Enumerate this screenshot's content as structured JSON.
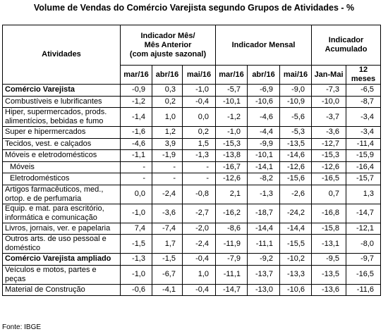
{
  "title": "Volume de Vendas do Comércio Varejista segundo Grupos de Atividades - %",
  "table": {
    "activity_header": "Atividades",
    "groups": [
      {
        "label": "Indicador Mês/\nMês Anterior\n(com ajuste sazonal)",
        "periods": [
          "mar/16",
          "abr/16",
          "mai/16"
        ]
      },
      {
        "label": "Indicador Mensal",
        "periods": [
          "mar/16",
          "abr/16",
          "mai/16"
        ]
      },
      {
        "label": "Indicador\nAcumulado",
        "periods": [
          "Jan-Mai",
          "12 meses"
        ]
      }
    ],
    "rows": [
      {
        "label": "Comércio Varejista",
        "values": [
          "-0,9",
          "0,3",
          "-1,0",
          "-5,7",
          "-6,9",
          "-9,0",
          "-7,3",
          "-6,5"
        ]
      },
      {
        "label": "Combustíveis e lubrificantes",
        "values": [
          "-1,2",
          "0,2",
          "-0,4",
          "-10,1",
          "-10,6",
          "-10,9",
          "-10,0",
          "-8,7"
        ]
      },
      {
        "label": "Hiper, supermercados, prods. alimentícios, bebidas e fumo",
        "values": [
          "-1,4",
          "1,0",
          "0,0",
          "-1,2",
          "-4,6",
          "-5,6",
          "-3,7",
          "-3,4"
        ]
      },
      {
        "label": "Super e hipermercados",
        "values": [
          "-1,6",
          "1,2",
          "0,2",
          "-1,0",
          "-4,4",
          "-5,3",
          "-3,6",
          "-3,4"
        ]
      },
      {
        "label": "Tecidos, vest. e calçados",
        "values": [
          "-4,6",
          "3,9",
          "1,5",
          "-15,3",
          "-9,9",
          "-13,5",
          "-12,7",
          "-11,4"
        ]
      },
      {
        "label": "Móveis e eletrodomésticos",
        "values": [
          "-1,1",
          "-1,9",
          "-1,3",
          "-13,8",
          "-10,1",
          "-14,6",
          "-15,3",
          "-15,9"
        ]
      },
      {
        "label": "Móveis",
        "values": [
          "-",
          "-",
          "-",
          "-16,7",
          "-14,1",
          "-12,6",
          "-12,6",
          "-16,4"
        ]
      },
      {
        "label": "Eletrodomésticos",
        "values": [
          "-",
          "-",
          "-",
          "-12,6",
          "-8,2",
          "-15,6",
          "-16,5",
          "-15,7"
        ]
      },
      {
        "label": "Artigos farmacêuticos, med., ortop. e de perfumaria",
        "values": [
          "0,0",
          "-2,4",
          "-0,8",
          "2,1",
          "-1,3",
          "-2,6",
          "0,7",
          "1,3"
        ]
      },
      {
        "label": "Equip. e mat. para escritório, informática e comunicação",
        "values": [
          "-1,0",
          "-3,6",
          "-2,7",
          "-16,2",
          "-18,7",
          "-24,2",
          "-16,8",
          "-14,7"
        ]
      },
      {
        "label": "Livros, jornais, ver. e papelaria",
        "values": [
          "7,4",
          "-7,4",
          "-2,0",
          "-8,6",
          "-14,4",
          "-14,4",
          "-15,8",
          "-12,1"
        ]
      },
      {
        "label": "Outros arts. de uso pessoal e doméstico",
        "values": [
          "-1,5",
          "1,7",
          "-2,4",
          "-11,9",
          "-11,1",
          "-15,5",
          "-13,1",
          "-8,0"
        ]
      },
      {
        "label": "Comércio Varejista ampliado",
        "values": [
          "-1,3",
          "-1,5",
          "-0,4",
          "-7,9",
          "-9,2",
          "-10,2",
          "-9,5",
          "-9,7"
        ]
      },
      {
        "label": "Veículos e motos, partes e peças",
        "values": [
          "-1,0",
          "-6,7",
          "1,0",
          "-11,1",
          "-13,7",
          "-13,3",
          "-13,5",
          "-16,5"
        ]
      },
      {
        "label": "Material de Construção",
        "values": [
          "-0,6",
          "-4,1",
          "-0,4",
          "-14,7",
          "-13,0",
          "-10,6",
          "-13,6",
          "-11,6"
        ]
      }
    ]
  },
  "source": "Fonte: IBGE"
}
